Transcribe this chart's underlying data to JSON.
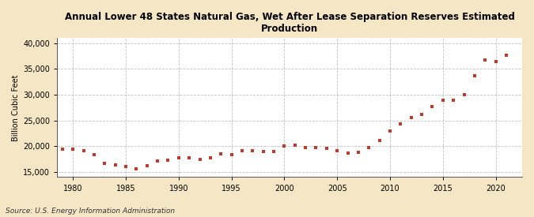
{
  "title": "Annual Lower 48 States Natural Gas, Wet After Lease Separation Reserves Estimated\nProduction",
  "ylabel": "Billion Cubic Feet",
  "source": "Source: U.S. Energy Information Administration",
  "background_color": "#f5e6c6",
  "plot_background_color": "#ffffff",
  "marker_color": "#c0392b",
  "grid_color": "#bbbbbb",
  "xlim": [
    1978.5,
    2022.5
  ],
  "ylim": [
    14000,
    41000
  ],
  "yticks": [
    15000,
    20000,
    25000,
    30000,
    35000,
    40000
  ],
  "xticks": [
    1980,
    1985,
    1990,
    1995,
    2000,
    2005,
    2010,
    2015,
    2020
  ],
  "years": [
    1979,
    1980,
    1981,
    1982,
    1983,
    1984,
    1985,
    1986,
    1987,
    1988,
    1989,
    1990,
    1991,
    1992,
    1993,
    1994,
    1995,
    1996,
    1997,
    1998,
    1999,
    2000,
    2001,
    2002,
    2003,
    2004,
    2005,
    2006,
    2007,
    2008,
    2009,
    2010,
    2011,
    2012,
    2013,
    2014,
    2015,
    2016,
    2017,
    2018,
    2019,
    2020,
    2021
  ],
  "values": [
    19500,
    19400,
    19100,
    18400,
    16700,
    16400,
    16000,
    15600,
    16200,
    17100,
    17300,
    17700,
    17700,
    17500,
    17800,
    18500,
    18400,
    19100,
    19100,
    19000,
    19000,
    20100,
    20200,
    19700,
    19700,
    19600,
    19100,
    18600,
    18900,
    19800,
    21100,
    22900,
    24300,
    25600,
    26200,
    27700,
    28900,
    28900,
    30000,
    33700,
    36800,
    36500,
    37700
  ]
}
